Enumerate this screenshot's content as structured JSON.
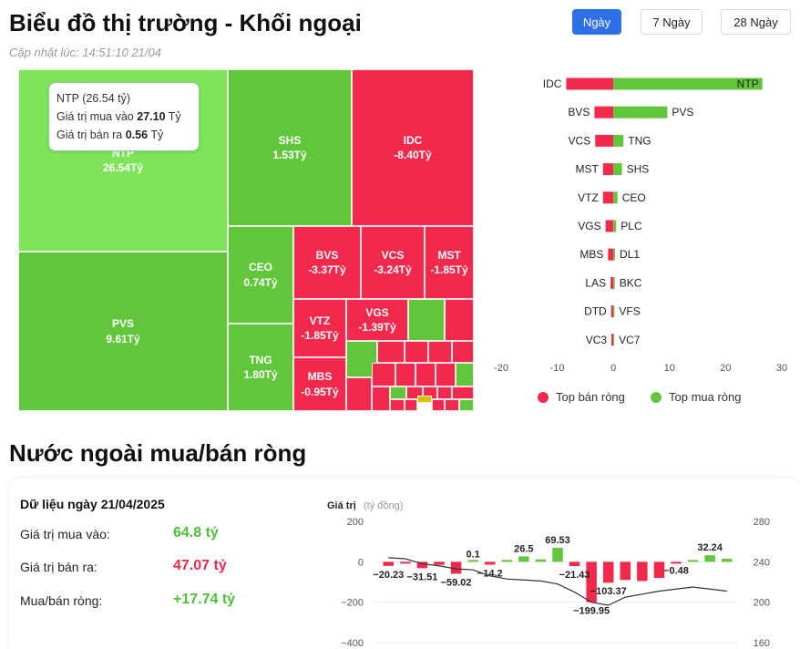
{
  "header": {
    "title": "Biểu đồ thị trường - Khối ngoại",
    "updated": "Cập nhật lúc: 14:51:10 21/04",
    "periods": [
      "Ngày",
      "7 Ngày",
      "28 Ngày"
    ],
    "active_period": "Ngày"
  },
  "colors": {
    "buy": "#62c63c",
    "sell": "#f2294d",
    "accent": "#2f6fe8",
    "ntp_light": "#7ee45a"
  },
  "treemap": {
    "tiles": [
      {
        "code": "NTP",
        "value": "26.54Tỷ",
        "side": "buy"
      },
      {
        "code": "SHS",
        "value": "1.53Tỷ",
        "side": "buy"
      },
      {
        "code": "IDC",
        "value": "-8.40Tỷ",
        "side": "sell"
      },
      {
        "code": "PVS",
        "value": "9.61Tỷ",
        "side": "buy"
      },
      {
        "code": "CEO",
        "value": "0.74Tỷ",
        "side": "buy"
      },
      {
        "code": "TNG",
        "value": "1.80Tỷ",
        "side": "buy"
      },
      {
        "code": "BVS",
        "value": "-3.37Tỷ",
        "side": "sell"
      },
      {
        "code": "VCS",
        "value": "-3.24Tỷ",
        "side": "sell"
      },
      {
        "code": "MST",
        "value": "-1.85Tỷ",
        "side": "sell"
      },
      {
        "code": "VTZ",
        "value": "-1.85Tỷ",
        "side": "sell"
      },
      {
        "code": "VGS",
        "value": "-1.39Tỷ",
        "side": "sell"
      },
      {
        "code": "MBS",
        "value": "-0.95Tỷ",
        "side": "sell"
      }
    ],
    "tooltip": {
      "title": "NTP (26.54 tỷ)",
      "buy_label": "Giá trị mua vào",
      "buy_value": "27.10",
      "sell_label": "Giá trị bán ra",
      "sell_value": "0.56",
      "unit": "Tỷ"
    }
  },
  "chart_data": [
    {
      "type": "bar",
      "orientation": "horizontal",
      "xlim": [
        -20,
        30
      ],
      "xticks": [
        "-20",
        "-10",
        "0",
        "10",
        "20",
        "30"
      ],
      "sell": [
        {
          "code": "IDC",
          "value": -8.4
        },
        {
          "code": "BVS",
          "value": -3.37
        },
        {
          "code": "VCS",
          "value": -3.24
        },
        {
          "code": "MST",
          "value": -1.85
        },
        {
          "code": "VTZ",
          "value": -1.85
        },
        {
          "code": "VGS",
          "value": -1.39
        },
        {
          "code": "MBS",
          "value": -0.95
        },
        {
          "code": "LAS",
          "value": -0.5
        },
        {
          "code": "DTD",
          "value": -0.4
        },
        {
          "code": "VC3",
          "value": -0.35
        }
      ],
      "buy": [
        {
          "code": "NTP",
          "value": 26.54
        },
        {
          "code": "PVS",
          "value": 9.61
        },
        {
          "code": "TNG",
          "value": 1.8
        },
        {
          "code": "SHS",
          "value": 1.53
        },
        {
          "code": "CEO",
          "value": 0.74
        },
        {
          "code": "PLC",
          "value": 0.5
        },
        {
          "code": "DL1",
          "value": 0.3
        },
        {
          "code": "BKC",
          "value": 0.25
        },
        {
          "code": "VFS",
          "value": 0.2
        },
        {
          "code": "VC7",
          "value": 0.15
        }
      ],
      "legend": [
        "Top bán ròng",
        "Top mua ròng"
      ]
    },
    {
      "type": "bar",
      "ylabel": "Giá trị",
      "yunit": "(tỷ đồng)",
      "ylim": [
        -400,
        200
      ],
      "yticks": [
        "200",
        "0",
        "−200",
        "−400"
      ],
      "y2ticks": [
        "280",
        "240",
        "200",
        "160"
      ],
      "bars": [
        -20.23,
        -8,
        -31.51,
        -15,
        -59.02,
        0.1,
        -14.2,
        5,
        26.5,
        12,
        69.53,
        -21.43,
        -199.95,
        -103.37,
        -90,
        -95,
        -80,
        -0.48,
        5,
        32.24,
        15
      ],
      "labels": [
        {
          "i": 0,
          "text": "−20.23"
        },
        {
          "i": 2,
          "text": "−31.51"
        },
        {
          "i": 4,
          "text": "−59.02"
        },
        {
          "i": 5,
          "text": "0.1"
        },
        {
          "i": 6,
          "text": "−14.2"
        },
        {
          "i": 8,
          "text": "26.5"
        },
        {
          "i": 10,
          "text": "69.53"
        },
        {
          "i": 11,
          "text": "−21.43"
        },
        {
          "i": 12,
          "text": "−199.95"
        },
        {
          "i": 13,
          "text": "−103.37"
        },
        {
          "i": 17,
          "text": "−0.48"
        },
        {
          "i": 19,
          "text": "32.24"
        }
      ],
      "line": [
        244,
        243,
        238,
        236,
        233,
        232,
        226,
        223,
        222,
        221,
        218,
        210,
        200,
        197,
        205,
        208,
        211,
        213,
        215,
        213,
        211
      ]
    }
  ],
  "net_section": {
    "title": "Nước ngoài mua/bán ròng",
    "date_label": "Dữ liệu ngày 21/04/2025",
    "rows": [
      {
        "label": "Giá trị mua vào:",
        "value": "64.8 tỷ",
        "tone": "green"
      },
      {
        "label": "Giá trị bán ra:",
        "value": "47.07 tỷ",
        "tone": "red"
      },
      {
        "label": "Mua/bán ròng:",
        "value": "+17.74 tỷ",
        "tone": "green"
      }
    ]
  }
}
